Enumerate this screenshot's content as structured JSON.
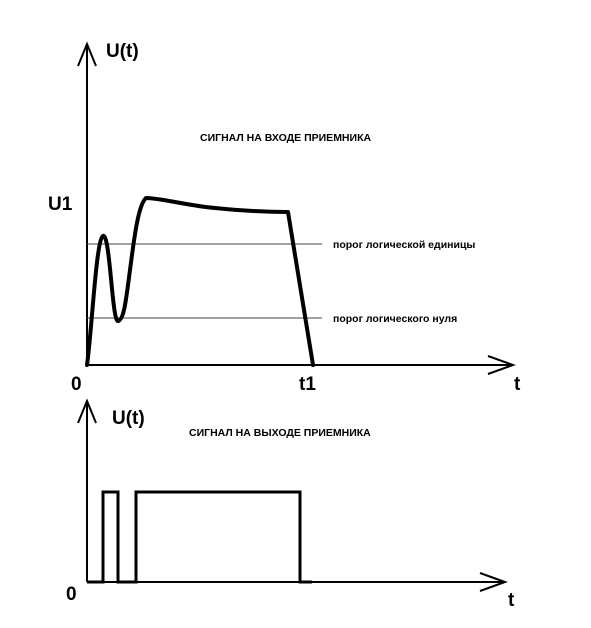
{
  "top": {
    "axis_y_label": "U(t)",
    "axis_x_label": "t",
    "origin_label": "0",
    "u1_label": "U1",
    "t1_label": "t1",
    "title": "СИГНАЛ НА ВХОДЕ ПРИЕМНИКА",
    "threshold_one": "порог логической единицы",
    "threshold_zero": "порог логического нуля"
  },
  "bottom": {
    "axis_y_label": "U(t)",
    "axis_x_label": "t",
    "origin_label": "0",
    "title": "СИГНАЛ НА ВЫХОДЕ ПРИЕМНИКА"
  }
}
